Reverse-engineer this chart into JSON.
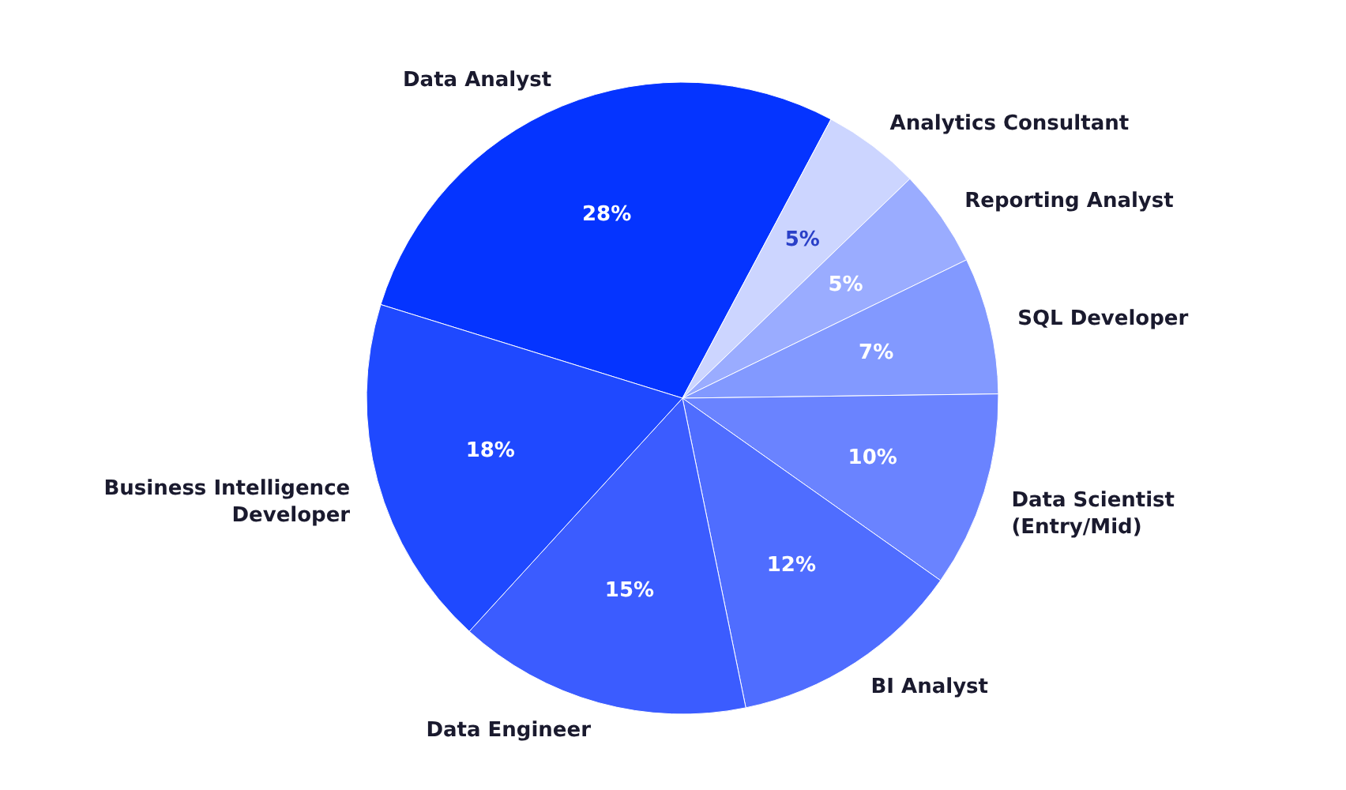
{
  "chart_data": {
    "type": "pie",
    "categories": [
      "Data Analyst",
      "Analytics Consultant",
      "Reporting Analyst",
      "SQL Developer",
      "Data Scientist (Entry/Mid)",
      "BI Analyst",
      "Data Engineer",
      "Business Intelligence Developer"
    ],
    "values": [
      28,
      5,
      5,
      7,
      10,
      12,
      15,
      18
    ],
    "colors": [
      "#0534ff",
      "#ccd5ff",
      "#9aacff",
      "#8299ff",
      "#6a83ff",
      "#4f6dff",
      "#3b5cff",
      "#1f49ff"
    ],
    "value_labels": [
      "28%",
      "5%",
      "5%",
      "7%",
      "10%",
      "12%",
      "15%",
      "18%"
    ]
  }
}
